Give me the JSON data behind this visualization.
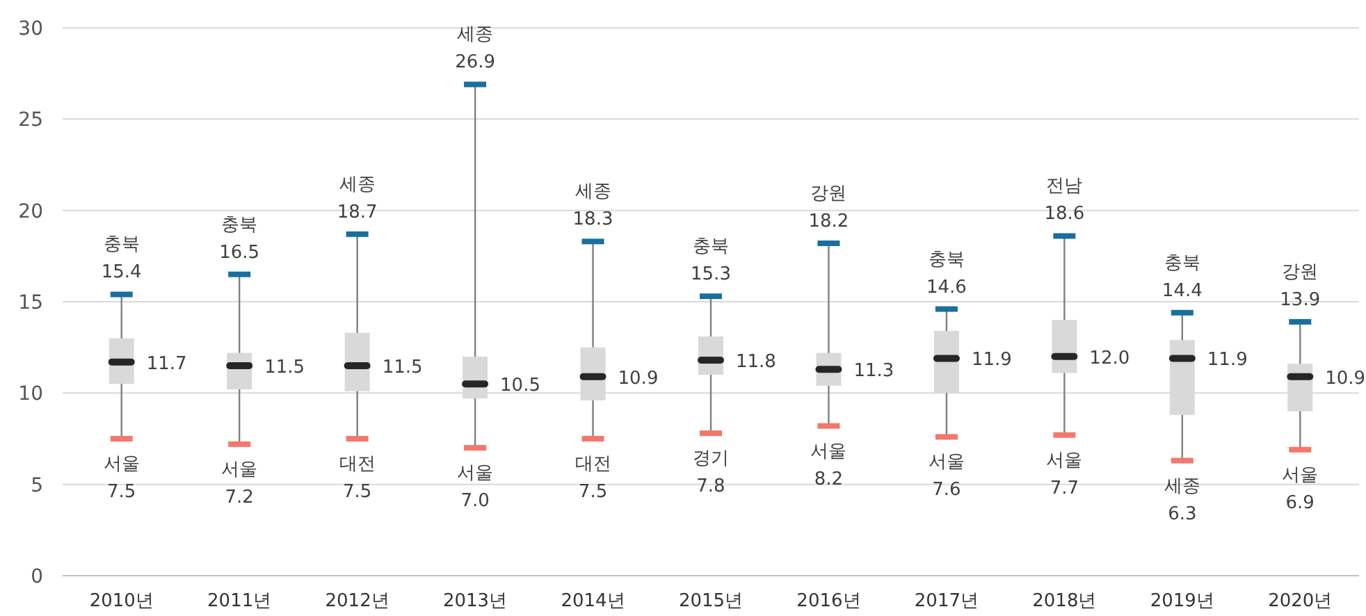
{
  "chart_data": {
    "type": "box",
    "categories": [
      "2010년",
      "2011년",
      "2012년",
      "2013년",
      "2014년",
      "2015년",
      "2016년",
      "2017년",
      "2018년",
      "2019년",
      "2020년"
    ],
    "boxes": [
      {
        "low": 7.5,
        "q1": 10.5,
        "median": 11.7,
        "q3": 13.0,
        "high": 15.4
      },
      {
        "low": 7.2,
        "q1": 10.2,
        "median": 11.5,
        "q3": 12.2,
        "high": 16.5
      },
      {
        "low": 7.5,
        "q1": 10.1,
        "median": 11.5,
        "q3": 13.3,
        "high": 18.7
      },
      {
        "low": 7.0,
        "q1": 9.7,
        "median": 10.5,
        "q3": 12.0,
        "high": 26.9
      },
      {
        "low": 7.5,
        "q1": 9.6,
        "median": 10.9,
        "q3": 12.5,
        "high": 18.3
      },
      {
        "low": 7.8,
        "q1": 11.0,
        "median": 11.8,
        "q3": 13.1,
        "high": 15.3
      },
      {
        "low": 8.2,
        "q1": 10.4,
        "median": 11.3,
        "q3": 12.2,
        "high": 18.2
      },
      {
        "low": 7.6,
        "q1": 10.0,
        "median": 11.9,
        "q3": 13.4,
        "high": 14.6
      },
      {
        "low": 7.7,
        "q1": 11.1,
        "median": 12.0,
        "q3": 14.0,
        "high": 18.6
      },
      {
        "low": 6.3,
        "q1": 8.8,
        "median": 11.9,
        "q3": 12.9,
        "high": 14.4
      },
      {
        "low": 6.9,
        "q1": 9.0,
        "median": 10.9,
        "q3": 11.6,
        "high": 13.9
      }
    ],
    "color": "#d9d9d9",
    "ylim": [
      0,
      30
    ],
    "yticks": [
      0,
      5,
      10,
      15,
      20,
      25,
      30
    ],
    "grid": "y",
    "annotations": [
      {
        "text": "충북",
        "x": "2010년",
        "y": 15.4
      },
      {
        "text": "15.4",
        "x": "2010년",
        "y": 15.4
      },
      {
        "text": "11.7",
        "x": "2010년",
        "y": 11.7
      },
      {
        "text": "서울",
        "x": "2010년",
        "y": 7.5
      },
      {
        "text": "7.5",
        "x": "2010년",
        "y": 7.5
      },
      {
        "text": "충북",
        "x": "2011년",
        "y": 16.5
      },
      {
        "text": "16.5",
        "x": "2011년",
        "y": 16.5
      },
      {
        "text": "11.5",
        "x": "2011년",
        "y": 11.5
      },
      {
        "text": "서울",
        "x": "2011년",
        "y": 7.2
      },
      {
        "text": "7.2",
        "x": "2011년",
        "y": 7.2
      },
      {
        "text": "세종",
        "x": "2012년",
        "y": 18.7
      },
      {
        "text": "18.7",
        "x": "2012년",
        "y": 18.7
      },
      {
        "text": "11.5",
        "x": "2012년",
        "y": 11.5
      },
      {
        "text": "대전",
        "x": "2012년",
        "y": 7.5
      },
      {
        "text": "7.5",
        "x": "2012년",
        "y": 7.5
      },
      {
        "text": "세종",
        "x": "2013년",
        "y": 26.9
      },
      {
        "text": "26.9",
        "x": "2013년",
        "y": 26.9
      },
      {
        "text": "10.5",
        "x": "2013년",
        "y": 10.5
      },
      {
        "text": "서울",
        "x": "2013년",
        "y": 7.0
      },
      {
        "text": "7.0",
        "x": "2013년",
        "y": 7.0
      },
      {
        "text": "세종",
        "x": "2014년",
        "y": 18.3
      },
      {
        "text": "18.3",
        "x": "2014년",
        "y": 18.3
      },
      {
        "text": "10.9",
        "x": "2014년",
        "y": 10.9
      },
      {
        "text": "대전",
        "x": "2014년",
        "y": 7.5
      },
      {
        "text": "7.5",
        "x": "2014년",
        "y": 7.5
      },
      {
        "text": "충북",
        "x": "2015년",
        "y": 15.3
      },
      {
        "text": "15.3",
        "x": "2015년",
        "y": 15.3
      },
      {
        "text": "11.8",
        "x": "2015년",
        "y": 11.8
      },
      {
        "text": "경기",
        "x": "2015년",
        "y": 7.8
      },
      {
        "text": "7.8",
        "x": "2015년",
        "y": 7.8
      },
      {
        "text": "강원",
        "x": "2016년",
        "y": 18.2
      },
      {
        "text": "18.2",
        "x": "2016년",
        "y": 18.2
      },
      {
        "text": "11.3",
        "x": "2016년",
        "y": 11.3
      },
      {
        "text": "서울",
        "x": "2016년",
        "y": 8.2
      },
      {
        "text": "8.2",
        "x": "2016년",
        "y": 8.2
      },
      {
        "text": "충북",
        "x": "2017년",
        "y": 14.6
      },
      {
        "text": "14.6",
        "x": "2017년",
        "y": 14.6
      },
      {
        "text": "11.9",
        "x": "2017년",
        "y": 11.9
      },
      {
        "text": "서울",
        "x": "2017년",
        "y": 7.6
      },
      {
        "text": "7.6",
        "x": "2017년",
        "y": 7.6
      },
      {
        "text": "전남",
        "x": "2018년",
        "y": 18.6
      },
      {
        "text": "18.6",
        "x": "2018년",
        "y": 18.6
      },
      {
        "text": "12.0",
        "x": "2018년",
        "y": 12.0
      },
      {
        "text": "서울",
        "x": "2018년",
        "y": 7.7
      },
      {
        "text": "7.7",
        "x": "2018년",
        "y": 7.7
      },
      {
        "text": "충북",
        "x": "2019년",
        "y": 14.4
      },
      {
        "text": "14.4",
        "x": "2019년",
        "y": 14.4
      },
      {
        "text": "11.9",
        "x": "2019년",
        "y": 11.9
      },
      {
        "text": "세종",
        "x": "2019년",
        "y": 6.3
      },
      {
        "text": "6.3",
        "x": "2019년",
        "y": 6.3
      },
      {
        "text": "강원",
        "x": "2020년",
        "y": 13.9
      },
      {
        "text": "13.9",
        "x": "2020년",
        "y": 13.9
      },
      {
        "text": "10.9",
        "x": "2020년",
        "y": 10.9
      },
      {
        "text": "서울",
        "x": "2020년",
        "y": 6.9
      },
      {
        "text": "6.9",
        "x": "2020년",
        "y": 6.9
      }
    ]
  }
}
